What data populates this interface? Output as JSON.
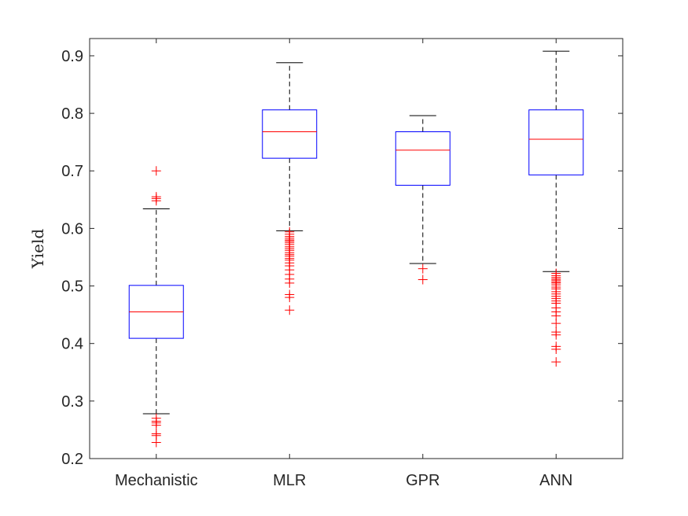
{
  "chart_data": {
    "type": "boxplot",
    "title": "",
    "xlabel": "",
    "ylabel": "Yield",
    "ylim": [
      0.2,
      0.93
    ],
    "yticks": [
      0.2,
      0.3,
      0.4,
      0.5,
      0.6,
      0.7,
      0.8,
      0.9
    ],
    "ytick_labels": [
      "0.2",
      "0.3",
      "0.4",
      "0.5",
      "0.6",
      "0.7",
      "0.8",
      "0.9"
    ],
    "grid": false,
    "categories": [
      "Mechanistic",
      "MLR",
      "GPR",
      "ANN"
    ],
    "boxes": [
      {
        "name": "Mechanistic",
        "whisker_low": 0.278,
        "q1": 0.409,
        "median": 0.455,
        "q3": 0.501,
        "whisker_high": 0.634,
        "outliers": [
          0.7,
          0.655,
          0.652,
          0.648,
          0.27,
          0.265,
          0.262,
          0.258,
          0.243,
          0.24,
          0.228
        ]
      },
      {
        "name": "MLR",
        "whisker_low": 0.596,
        "q1": 0.722,
        "median": 0.768,
        "q3": 0.806,
        "whisker_high": 0.888,
        "outliers": [
          0.594,
          0.59,
          0.586,
          0.583,
          0.58,
          0.578,
          0.575,
          0.572,
          0.568,
          0.565,
          0.562,
          0.558,
          0.555,
          0.552,
          0.548,
          0.545,
          0.54,
          0.535,
          0.528,
          0.52,
          0.512,
          0.505,
          0.485,
          0.48,
          0.458
        ]
      },
      {
        "name": "GPR",
        "whisker_low": 0.539,
        "q1": 0.675,
        "median": 0.736,
        "q3": 0.768,
        "whisker_high": 0.796,
        "outliers": [
          0.53,
          0.511
        ]
      },
      {
        "name": "ANN",
        "whisker_low": 0.525,
        "q1": 0.693,
        "median": 0.755,
        "q3": 0.806,
        "whisker_high": 0.908,
        "outliers": [
          0.522,
          0.518,
          0.515,
          0.512,
          0.51,
          0.507,
          0.505,
          0.502,
          0.498,
          0.495,
          0.49,
          0.486,
          0.482,
          0.478,
          0.474,
          0.47,
          0.462,
          0.455,
          0.448,
          0.435,
          0.42,
          0.415,
          0.395,
          0.39,
          0.368
        ]
      }
    ],
    "colors": {
      "box": "#0000ff",
      "median": "#ff0000",
      "whisker": "#000000",
      "outlier": "#ff0000",
      "axis": "#262626"
    }
  }
}
